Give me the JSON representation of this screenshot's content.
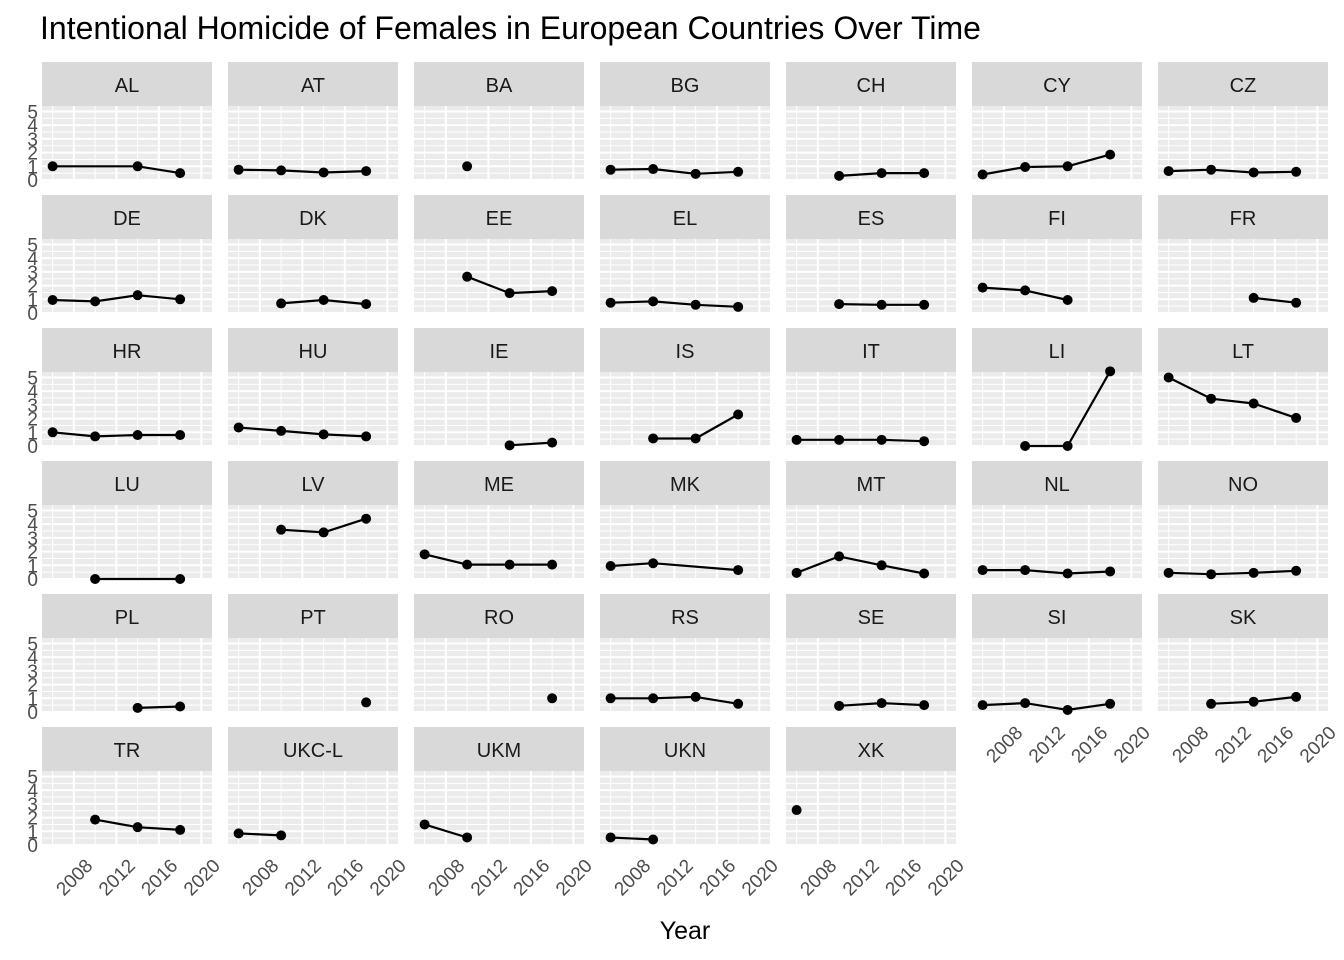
{
  "chart_data": {
    "type": "line",
    "title": "Intentional Homicide of Females in European Countries Over Time",
    "xlabel": "Year",
    "ylabel": "",
    "xlim": [
      2005,
      2021
    ],
    "ylim": [
      0,
      5.4
    ],
    "x_ticks": [
      2008,
      2012,
      2016,
      2020
    ],
    "y_ticks": [
      0,
      1,
      2,
      3,
      4,
      5
    ],
    "grid": true,
    "facet_layout": {
      "columns": 7,
      "rows": 6
    },
    "colors": {
      "panel_background": "#ebebeb",
      "grid_major": "#ffffff",
      "strip_background": "#d9d9d9",
      "series": "#000000",
      "tick_text": "#4d4d4d"
    },
    "facets": [
      {
        "name": "AL",
        "x": [
          2006,
          2014,
          2018
        ],
        "y": [
          1.0,
          1.0,
          0.5
        ]
      },
      {
        "name": "AT",
        "x": [
          2006,
          2010,
          2014,
          2018
        ],
        "y": [
          0.75,
          0.7,
          0.55,
          0.65
        ]
      },
      {
        "name": "BA",
        "x": [
          2010
        ],
        "y": [
          1.0
        ]
      },
      {
        "name": "BG",
        "x": [
          2006,
          2010,
          2014,
          2018
        ],
        "y": [
          0.75,
          0.8,
          0.45,
          0.6
        ]
      },
      {
        "name": "CH",
        "x": [
          2010,
          2014,
          2018
        ],
        "y": [
          0.3,
          0.5,
          0.5
        ]
      },
      {
        "name": "CY",
        "x": [
          2006,
          2010,
          2014,
          2018
        ],
        "y": [
          0.4,
          0.95,
          1.0,
          1.85
        ]
      },
      {
        "name": "CZ",
        "x": [
          2006,
          2010,
          2014,
          2018
        ],
        "y": [
          0.65,
          0.75,
          0.55,
          0.6
        ]
      },
      {
        "name": "DE",
        "x": [
          2006,
          2010,
          2014,
          2018
        ],
        "y": [
          0.95,
          0.85,
          1.3,
          1.0
        ]
      },
      {
        "name": "DK",
        "x": [
          2010,
          2014,
          2018
        ],
        "y": [
          0.7,
          0.95,
          0.65
        ]
      },
      {
        "name": "EE",
        "x": [
          2010,
          2014,
          2018
        ],
        "y": [
          2.65,
          1.45,
          1.6
        ]
      },
      {
        "name": "EL",
        "x": [
          2006,
          2010,
          2014,
          2018
        ],
        "y": [
          0.75,
          0.85,
          0.6,
          0.45
        ]
      },
      {
        "name": "ES",
        "x": [
          2010,
          2014,
          2018
        ],
        "y": [
          0.65,
          0.6,
          0.6
        ]
      },
      {
        "name": "FI",
        "x": [
          2006,
          2010,
          2014
        ],
        "y": [
          1.85,
          1.65,
          0.95
        ]
      },
      {
        "name": "FR",
        "x": [
          2014,
          2018
        ],
        "y": [
          1.1,
          0.75
        ]
      },
      {
        "name": "HR",
        "x": [
          2006,
          2010,
          2014,
          2018
        ],
        "y": [
          1.0,
          0.7,
          0.8,
          0.8
        ]
      },
      {
        "name": "HU",
        "x": [
          2006,
          2010,
          2014,
          2018
        ],
        "y": [
          1.35,
          1.1,
          0.85,
          0.7
        ]
      },
      {
        "name": "IE",
        "x": [
          2014,
          2018
        ],
        "y": [
          0.05,
          0.25
        ]
      },
      {
        "name": "IS",
        "x": [
          2010,
          2014,
          2018
        ],
        "y": [
          0.55,
          0.55,
          2.3
        ]
      },
      {
        "name": "IT",
        "x": [
          2006,
          2010,
          2014,
          2018
        ],
        "y": [
          0.45,
          0.45,
          0.45,
          0.35
        ]
      },
      {
        "name": "LI",
        "x": [
          2010,
          2014,
          2018
        ],
        "y": [
          0.0,
          0.0,
          5.45
        ]
      },
      {
        "name": "LT",
        "x": [
          2006,
          2010,
          2014,
          2018
        ],
        "y": [
          5.0,
          3.45,
          3.1,
          2.05
        ]
      },
      {
        "name": "LU",
        "x": [
          2010,
          2018
        ],
        "y": [
          0.0,
          0.0
        ]
      },
      {
        "name": "LV",
        "x": [
          2010,
          2014,
          2018
        ],
        "y": [
          3.6,
          3.4,
          4.4
        ]
      },
      {
        "name": "ME",
        "x": [
          2006,
          2010,
          2014,
          2018
        ],
        "y": [
          1.8,
          1.05,
          1.05,
          1.05
        ]
      },
      {
        "name": "MK",
        "x": [
          2006,
          2010,
          2018
        ],
        "y": [
          0.95,
          1.15,
          0.65
        ]
      },
      {
        "name": "MT",
        "x": [
          2006,
          2010,
          2014,
          2018
        ],
        "y": [
          0.45,
          1.65,
          1.0,
          0.4
        ]
      },
      {
        "name": "NL",
        "x": [
          2006,
          2010,
          2014,
          2018
        ],
        "y": [
          0.65,
          0.65,
          0.4,
          0.55
        ]
      },
      {
        "name": "NO",
        "x": [
          2006,
          2010,
          2014,
          2018
        ],
        "y": [
          0.45,
          0.35,
          0.45,
          0.6
        ]
      },
      {
        "name": "PL",
        "x": [
          2014,
          2018
        ],
        "y": [
          0.3,
          0.4
        ]
      },
      {
        "name": "PT",
        "x": [
          2018
        ],
        "y": [
          0.7
        ]
      },
      {
        "name": "RO",
        "x": [
          2018
        ],
        "y": [
          1.0
        ]
      },
      {
        "name": "RS",
        "x": [
          2006,
          2010,
          2014,
          2018
        ],
        "y": [
          1.0,
          1.0,
          1.1,
          0.6
        ]
      },
      {
        "name": "SE",
        "x": [
          2010,
          2014,
          2018
        ],
        "y": [
          0.45,
          0.65,
          0.5
        ]
      },
      {
        "name": "SI",
        "x": [
          2006,
          2010,
          2014,
          2018
        ],
        "y": [
          0.5,
          0.65,
          0.15,
          0.6
        ]
      },
      {
        "name": "SK",
        "x": [
          2010,
          2014,
          2018
        ],
        "y": [
          0.6,
          0.75,
          1.1
        ]
      },
      {
        "name": "TR",
        "x": [
          2010,
          2014,
          2018
        ],
        "y": [
          1.85,
          1.3,
          1.1
        ]
      },
      {
        "name": "UKC-L",
        "x": [
          2006,
          2010
        ],
        "y": [
          0.85,
          0.7
        ]
      },
      {
        "name": "UKM",
        "x": [
          2006,
          2010
        ],
        "y": [
          1.5,
          0.55
        ]
      },
      {
        "name": "UKN",
        "x": [
          2006,
          2010
        ],
        "y": [
          0.55,
          0.4
        ]
      },
      {
        "name": "XK",
        "x": [
          2006
        ],
        "y": [
          2.55
        ]
      }
    ]
  }
}
